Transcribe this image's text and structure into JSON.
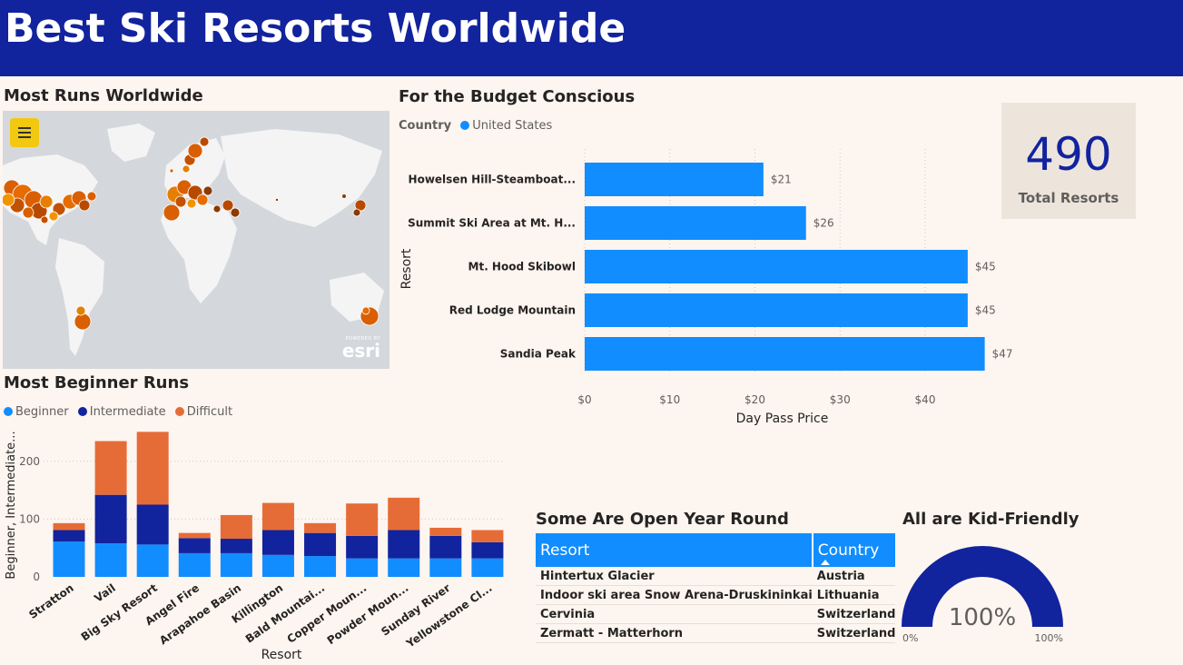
{
  "header": {
    "title": "Best Ski Resorts Worldwide"
  },
  "map": {
    "title": "Most Runs Worldwide",
    "attribution_small": "POWERED BY",
    "attribution": "esri",
    "menu_icon": "hamburger-menu-icon"
  },
  "budget": {
    "title": "For the Budget Conscious",
    "legend_title": "Country",
    "legend_item": "United States",
    "legend_color": "#118dff"
  },
  "kpi": {
    "value": "490",
    "label": "Total Resorts"
  },
  "beginner": {
    "title": "Most Beginner Runs"
  },
  "year_round": {
    "title": "Some Are Open Year Round",
    "columns": [
      "Resort",
      "Country"
    ],
    "rows": [
      [
        "Hintertux Glacier",
        "Austria"
      ],
      [
        "Indoor ski area Snow Arena-Druskininkai",
        "Lithuania"
      ],
      [
        "Cervinia",
        "Switzerland"
      ],
      [
        "Zermatt - Matterhorn",
        "Switzerland"
      ]
    ]
  },
  "kid_friendly": {
    "title": "All are Kid-Friendly",
    "value_label": "100%",
    "min_label": "0%",
    "max_label": "100%",
    "fraction": 1.0,
    "color": "#12239e"
  },
  "chart_data": [
    {
      "type": "bar",
      "orientation": "horizontal",
      "title": "For the Budget Conscious",
      "categories": [
        "Howelsen Hill-Steamboat...",
        "Summit Ski Area at Mt. H...",
        "Mt. Hood Skibowl",
        "Red Lodge Mountain",
        "Sandia Peak"
      ],
      "values": [
        21,
        26,
        45,
        45,
        47
      ],
      "data_labels": [
        "$21",
        "$26",
        "$45",
        "$45",
        "$47"
      ],
      "xlabel": "Day Pass Price",
      "ylabel": "Resort",
      "xlim": [
        0,
        48
      ],
      "xticks": [
        0,
        10,
        20,
        30,
        40
      ],
      "xtick_labels": [
        "$0",
        "$10",
        "$20",
        "$30",
        "$40"
      ],
      "series_color": "#118dff",
      "grid": true
    },
    {
      "type": "bar",
      "stacked": true,
      "title": "Most Beginner Runs",
      "categories": [
        "Stratton",
        "Vail",
        "Big Sky Resort",
        "Angel Fire",
        "Arapahoe Basin",
        "Killington",
        "Bald Mountai...",
        "Copper Moun...",
        "Powder Moun...",
        "Sunday River",
        "Yellowstone Cl..."
      ],
      "series": [
        {
          "name": "Beginner",
          "color": "#118dff",
          "values": [
            61,
            58,
            56,
            41,
            41,
            38,
            36,
            32,
            32,
            32,
            32
          ]
        },
        {
          "name": "Intermediate",
          "color": "#12239e",
          "values": [
            20,
            84,
            69,
            26,
            25,
            43,
            40,
            39,
            49,
            39,
            28
          ]
        },
        {
          "name": "Difficult",
          "color": "#e66c37",
          "values": [
            12,
            93,
            126,
            9,
            41,
            47,
            17,
            56,
            56,
            14,
            21
          ]
        }
      ],
      "xlabel": "Resort",
      "ylabel": "Beginner, Intermediate...",
      "ylim": [
        0,
        250
      ],
      "yticks": [
        0,
        100,
        200
      ],
      "grid": true,
      "legend_position": "top-left"
    }
  ]
}
